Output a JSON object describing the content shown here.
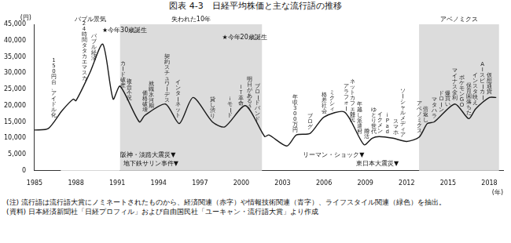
{
  "chart_data": {
    "type": "line",
    "title": "図表 4-3　日経平均株価と主な流行語の推移",
    "notes": [
      "(注) 流行語は流行語大賞にノミネートされたものから、経済関連（赤字）や情報技術関連（青字）、ライフスタイル関連（緑色）を抽出。",
      "(資料) 日本経済新聞社「日経プロフィル」および自由国民社「ユーキャン・流行語大賞」より作成"
    ],
    "y_label": "(円)",
    "x_label": "(年)",
    "x": [
      1985.0,
      1986.0,
      1987.0,
      1987.8,
      1988.0,
      1989.0,
      1989.95,
      1990.7,
      1991.2,
      1992.6,
      1993.0,
      1994.5,
      1995.5,
      1996.5,
      1997.9,
      1998.8,
      2000.3,
      2001.7,
      2002.0,
      2003.3,
      2004.0,
      2005.0,
      2006.0,
      2007.5,
      2008.9,
      2009.5,
      2010.0,
      2011.0,
      2012.0,
      2012.9,
      2013.5,
      2014.0,
      2015.5,
      2016.5,
      2017.0,
      2018.0,
      2018.5
    ],
    "values": [
      12500,
      13000,
      18500,
      22000,
      21500,
      30000,
      38900,
      22000,
      26000,
      15000,
      17000,
      20500,
      14500,
      22500,
      15000,
      13500,
      20000,
      10500,
      11000,
      7600,
      11000,
      11500,
      16500,
      18000,
      8000,
      10000,
      10500,
      10000,
      9000,
      10300,
      14500,
      15000,
      20500,
      16000,
      19000,
      22500,
      22500
    ],
    "color": "#1a1a1a",
    "xlim": [
      1985,
      2019
    ],
    "xticks": [
      1985,
      1988,
      1991,
      1994,
      1997,
      2000,
      2003,
      2006,
      2009,
      2012,
      2015,
      2018
    ],
    "ylim": [
      0,
      45000
    ],
    "yticks": [
      0,
      {
        "value": 5000,
        "label": "5,000"
      },
      {
        "value": 10000,
        "label": "10,000"
      },
      {
        "value": 15000,
        "label": "15,000"
      },
      {
        "value": 20000,
        "label": "20,000"
      },
      {
        "value": 25000,
        "label": "25,000"
      },
      {
        "value": 30000,
        "label": "30,000"
      },
      {
        "value": 35000,
        "label": "35,000"
      },
      {
        "value": 40000,
        "label": "40,000"
      },
      {
        "value": 45000,
        "label": "45,000"
      }
    ],
    "grid": false,
    "periods": [
      {
        "label": "バブル景気",
        "start": 1986.9,
        "end": 1991.2,
        "color": "#ffffff"
      },
      {
        "label": "失われた10年",
        "start": 1991.2,
        "end": 2001.5,
        "color": "#dcdcdc"
      },
      {
        "label": "アベノミクス",
        "start": 2012.9,
        "end": 2018.7,
        "color": "#dcdcdc"
      }
    ],
    "annotations": [
      {
        "text": "★今年30歳誕生",
        "x": 1989.9,
        "y": 43000
      },
      {
        "text": "★今年20歳誕生",
        "x": 1998.6,
        "y": 41000
      }
    ],
    "events": [
      {
        "text": "阪神・淡路大震災▼",
        "x": 1995.0
      },
      {
        "text": "地下鉄サリン事件▼",
        "x": 1995.2
      },
      {
        "text": "リーマン・ショック▼",
        "x": 2008.7
      },
      {
        "text": "東日本大震災▼",
        "x": 2011.2
      }
    ],
    "buzzwords": [
      {
        "text": "150円台、アイドル化",
        "x": 1986.4
      },
      {
        "text": "24時間タタカエマスカ",
        "x": 1988.6
      },
      {
        "text": "バブル経済",
        "x": 1989.3
      },
      {
        "text": "カード破産",
        "x": 1991.4
      },
      {
        "text": "複合不況",
        "x": 1991.9
      },
      {
        "text": "価格破壊",
        "x": 1993.0
      },
      {
        "text": "就職氷河期",
        "x": 1993.5
      },
      {
        "text": "契約スチュワーデス",
        "x": 1994.6
      },
      {
        "text": "インターネット",
        "x": 1995.4
      },
      {
        "text": "貸し渋り",
        "x": 1997.9
      },
      {
        "text": "ｉモード",
        "x": 1999.2
      },
      {
        "text": "ＩＴ革命",
        "x": 2000.0
      },
      {
        "text": "明日があるさ",
        "x": 2000.6
      },
      {
        "text": "ブロードバンド",
        "x": 2001.2
      },
      {
        "text": "年収300万円",
        "x": 2003.9
      },
      {
        "text": "ブログ",
        "x": 2005.0
      },
      {
        "text": "格差社会",
        "x": 2006.0
      },
      {
        "text": "ミクシィ",
        "x": 2006.6
      },
      {
        "text": "アラフォー",
        "x": 2007.6
      },
      {
        "text": "ネットカフェ難民",
        "x": 2008.1
      },
      {
        "text": "年越し派遣村",
        "x": 2008.6
      },
      {
        "text": "婚活",
        "x": 2009.1
      },
      {
        "text": "ゆとり世代",
        "x": 2009.6
      },
      {
        "text": "イクメン",
        "x": 2010.1
      },
      {
        "text": "iPad",
        "x": 2010.6
      },
      {
        "text": "スマホ",
        "x": 2011.2
      },
      {
        "text": "ソーシャルメディア",
        "x": 2011.7
      },
      {
        "text": "アベノミクス",
        "x": 2012.9
      },
      {
        "text": "倍返し",
        "x": 2013.4
      },
      {
        "text": "マタハラ",
        "x": 2014.0
      },
      {
        "text": "ドローン",
        "x": 2014.5
      },
      {
        "text": "爆買い",
        "x": 2015.0
      },
      {
        "text": "マイナス金利",
        "x": 2015.5
      },
      {
        "text": "ポケモンGO",
        "x": 2016.0
      },
      {
        "text": "保育園落ちた",
        "x": 2016.5
      },
      {
        "text": "インスタ映え",
        "x": 2017.0
      },
      {
        "text": "AIスピーカー",
        "x": 2017.5
      },
      {
        "text": "仮想通貨",
        "x": 2018.0
      }
    ]
  }
}
